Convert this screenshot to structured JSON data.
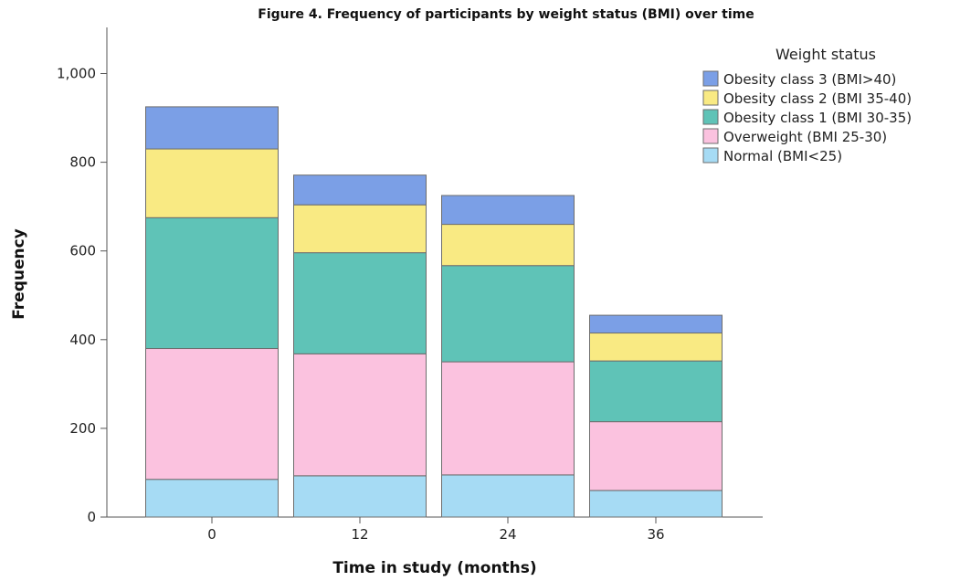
{
  "chart_data": {
    "type": "bar",
    "stacked": true,
    "title": "Figure 4. Frequency of participants by weight status (BMI) over time",
    "xlabel": "Time in study (months)",
    "ylabel": "Frequency",
    "ylim": [
      0,
      1100
    ],
    "yticks": [
      0,
      200,
      400,
      600,
      800,
      1000
    ],
    "ytick_labels": [
      "0",
      "200",
      "400",
      "600",
      "800",
      "1,000"
    ],
    "categories": [
      "0",
      "12",
      "24",
      "36"
    ],
    "grid": false,
    "legend": {
      "title": "Weight status",
      "placement": "top-right"
    },
    "series": [
      {
        "name": "Normal (BMI<25)",
        "color": "#a6dbf4",
        "values": [
          85,
          93,
          95,
          60
        ]
      },
      {
        "name": "Overweight (BMI 25-30)",
        "color": "#fbc2df",
        "values": [
          295,
          275,
          255,
          155
        ]
      },
      {
        "name": "Obesity class 1 (BMI 30-35)",
        "color": "#5fc3b7",
        "values": [
          295,
          228,
          217,
          137
        ]
      },
      {
        "name": "Obesity class 2 (BMI 35-40)",
        "color": "#f9ea83",
        "values": [
          155,
          108,
          93,
          63
        ]
      },
      {
        "name": "Obesity class 3 (BMI>40)",
        "color": "#7b9fe6",
        "values": [
          95,
          67,
          65,
          40
        ]
      }
    ]
  }
}
